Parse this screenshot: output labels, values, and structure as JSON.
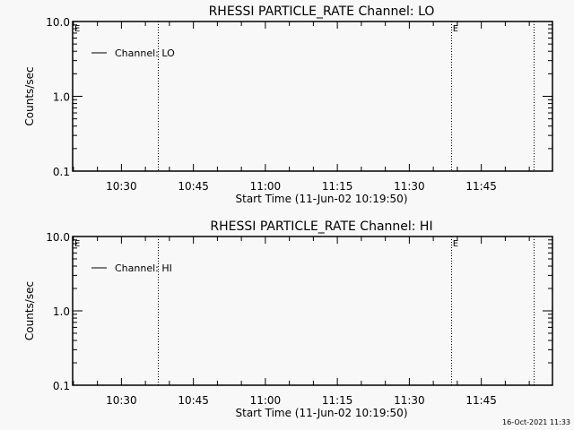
{
  "chart_data": [
    {
      "type": "line",
      "title": "RHESSI PARTICLE_RATE Channel: LO",
      "xlabel": "Start Time (11-Jun-02 10:19:50)",
      "ylabel": "Counts/sec",
      "xlim": [
        "10:19:50",
        "11:59:50"
      ],
      "ylim": [
        0.1,
        10.0
      ],
      "yscale": "log",
      "x_ticks": [
        "10:30",
        "10:45",
        "11:00",
        "11:15",
        "11:30",
        "11:45"
      ],
      "y_ticks": [
        "0.1",
        "1.0",
        "10.0"
      ],
      "legend": {
        "entries": [
          "Channel: LO"
        ],
        "placement": "top-left"
      },
      "series": [
        {
          "name": "Channel: LO",
          "x": [],
          "y": []
        }
      ],
      "vlines": [
        "10:37:35",
        "11:38:40",
        "11:56:00"
      ],
      "annotations": [
        {
          "text": "E",
          "x": "10:19:50"
        },
        {
          "text": "E",
          "x": "11:38:40"
        }
      ],
      "grid": false
    },
    {
      "type": "line",
      "title": "RHESSI PARTICLE_RATE Channel: HI",
      "xlabel": "Start Time (11-Jun-02 10:19:50)",
      "ylabel": "Counts/sec",
      "xlim": [
        "10:19:50",
        "11:59:50"
      ],
      "ylim": [
        0.1,
        10.0
      ],
      "yscale": "log",
      "x_ticks": [
        "10:30",
        "10:45",
        "11:00",
        "11:15",
        "11:30",
        "11:45"
      ],
      "y_ticks": [
        "0.1",
        "1.0",
        "10.0"
      ],
      "legend": {
        "entries": [
          "Channel: HI"
        ],
        "placement": "top-left"
      },
      "series": [
        {
          "name": "Channel: HI",
          "x": [],
          "y": []
        }
      ],
      "vlines": [
        "10:37:35",
        "11:38:40",
        "11:56:00"
      ],
      "annotations": [
        {
          "text": "E",
          "x": "10:19:50"
        },
        {
          "text": "E",
          "x": "11:38:40"
        }
      ],
      "grid": false
    }
  ],
  "footer": {
    "timestamp": "16-Oct-2021 11:33"
  },
  "colors": {
    "background": "#f8f8f8",
    "foreground": "#000000"
  }
}
